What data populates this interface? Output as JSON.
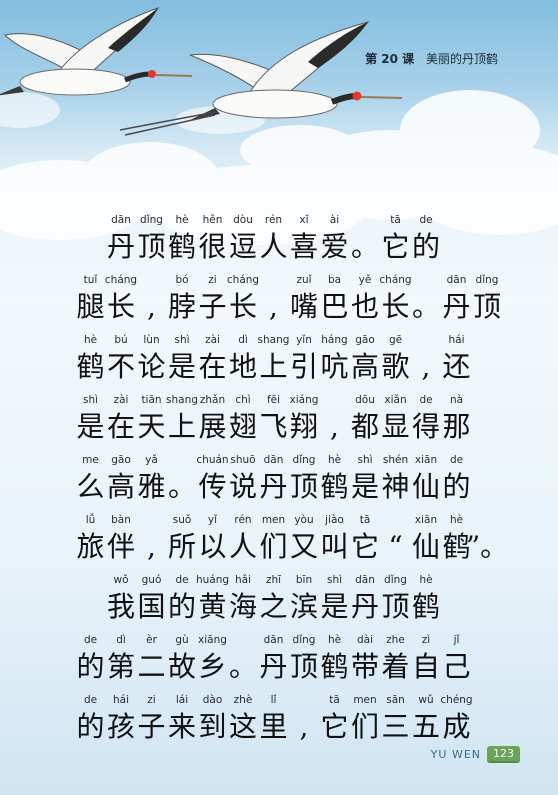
{
  "header": {
    "lesson_number": "第 20 课",
    "lesson_title": "美丽的丹顶鹤"
  },
  "lines": [
    {
      "start": 1,
      "cells": [
        {
          "py": "dān",
          "hz": "丹"
        },
        {
          "py": "dǐng",
          "hz": "顶"
        },
        {
          "py": "hè",
          "hz": "鹤"
        },
        {
          "py": "hěn",
          "hz": "很"
        },
        {
          "py": "dòu",
          "hz": "逗"
        },
        {
          "py": "rén",
          "hz": "人"
        },
        {
          "py": "xǐ",
          "hz": "喜"
        },
        {
          "py": "ài",
          "hz": "爱"
        },
        {
          "py": "",
          "hz": "。"
        },
        {
          "py": "tā",
          "hz": "它"
        },
        {
          "py": "de",
          "hz": "的"
        }
      ]
    },
    {
      "start": 0,
      "cells": [
        {
          "py": "tuǐ",
          "hz": "腿"
        },
        {
          "py": "cháng",
          "hz": "长"
        },
        {
          "py": "",
          "hz": ","
        },
        {
          "py": "bó",
          "hz": "脖"
        },
        {
          "py": "zi",
          "hz": "子"
        },
        {
          "py": "cháng",
          "hz": "长"
        },
        {
          "py": "",
          "hz": ","
        },
        {
          "py": "zuǐ",
          "hz": "嘴"
        },
        {
          "py": "ba",
          "hz": "巴"
        },
        {
          "py": "yě",
          "hz": "也"
        },
        {
          "py": "cháng",
          "hz": "长"
        },
        {
          "py": "",
          "hz": "。"
        },
        {
          "py": "dān",
          "hz": "丹"
        },
        {
          "py": "dǐng",
          "hz": "顶"
        }
      ]
    },
    {
      "start": 0,
      "cells": [
        {
          "py": "hè",
          "hz": "鹤"
        },
        {
          "py": "bú",
          "hz": "不"
        },
        {
          "py": "lùn",
          "hz": "论"
        },
        {
          "py": "shì",
          "hz": "是"
        },
        {
          "py": "zài",
          "hz": "在"
        },
        {
          "py": "dì",
          "hz": "地"
        },
        {
          "py": "shang",
          "hz": "上"
        },
        {
          "py": "yǐn",
          "hz": "引"
        },
        {
          "py": "háng",
          "hz": "吭"
        },
        {
          "py": "gāo",
          "hz": "高"
        },
        {
          "py": "gē",
          "hz": "歌"
        },
        {
          "py": "",
          "hz": ","
        },
        {
          "py": "hái",
          "hz": "还"
        }
      ]
    },
    {
      "start": 0,
      "cells": [
        {
          "py": "shì",
          "hz": "是"
        },
        {
          "py": "zài",
          "hz": "在"
        },
        {
          "py": "tiān",
          "hz": "天"
        },
        {
          "py": "shang",
          "hz": "上"
        },
        {
          "py": "zhǎn",
          "hz": "展"
        },
        {
          "py": "chì",
          "hz": "翅"
        },
        {
          "py": "fēi",
          "hz": "飞"
        },
        {
          "py": "xiáng",
          "hz": "翔"
        },
        {
          "py": "",
          "hz": ","
        },
        {
          "py": "dōu",
          "hz": "都"
        },
        {
          "py": "xiǎn",
          "hz": "显"
        },
        {
          "py": "de",
          "hz": "得"
        },
        {
          "py": "nà",
          "hz": "那"
        }
      ]
    },
    {
      "start": 0,
      "cells": [
        {
          "py": "me",
          "hz": "么"
        },
        {
          "py": "gāo",
          "hz": "高"
        },
        {
          "py": "yǎ",
          "hz": "雅"
        },
        {
          "py": "",
          "hz": "。"
        },
        {
          "py": "chuán",
          "hz": "传"
        },
        {
          "py": "shuō",
          "hz": "说"
        },
        {
          "py": "dān",
          "hz": "丹"
        },
        {
          "py": "dǐng",
          "hz": "顶"
        },
        {
          "py": "hè",
          "hz": "鹤"
        },
        {
          "py": "shì",
          "hz": "是"
        },
        {
          "py": "shén",
          "hz": "神"
        },
        {
          "py": "xiān",
          "hz": "仙"
        },
        {
          "py": "de",
          "hz": "的"
        }
      ]
    },
    {
      "start": 0,
      "cells": [
        {
          "py": "lǚ",
          "hz": "旅"
        },
        {
          "py": "bàn",
          "hz": "伴"
        },
        {
          "py": "",
          "hz": ","
        },
        {
          "py": "suǒ",
          "hz": "所"
        },
        {
          "py": "yǐ",
          "hz": "以"
        },
        {
          "py": "rén",
          "hz": "人"
        },
        {
          "py": "men",
          "hz": "们"
        },
        {
          "py": "yòu",
          "hz": "又"
        },
        {
          "py": "jiào",
          "hz": "叫"
        },
        {
          "py": "tā",
          "hz": "它"
        },
        {
          "py": "",
          "hz": "“"
        },
        {
          "py": "xiān",
          "hz": "仙"
        },
        {
          "py": "hè",
          "hz": "鹤"
        },
        {
          "py": "",
          "hz": "”。"
        }
      ]
    },
    {
      "start": 1,
      "cells": [
        {
          "py": "wǒ",
          "hz": "我"
        },
        {
          "py": "guó",
          "hz": "国"
        },
        {
          "py": "de",
          "hz": "的"
        },
        {
          "py": "huáng",
          "hz": "黄"
        },
        {
          "py": "hǎi",
          "hz": "海"
        },
        {
          "py": "zhī",
          "hz": "之"
        },
        {
          "py": "bīn",
          "hz": "滨"
        },
        {
          "py": "shì",
          "hz": "是"
        },
        {
          "py": "dān",
          "hz": "丹"
        },
        {
          "py": "dǐng",
          "hz": "顶"
        },
        {
          "py": "hè",
          "hz": "鹤"
        }
      ]
    },
    {
      "start": 0,
      "cells": [
        {
          "py": "de",
          "hz": "的"
        },
        {
          "py": "dì",
          "hz": "第"
        },
        {
          "py": "èr",
          "hz": "二"
        },
        {
          "py": "gù",
          "hz": "故"
        },
        {
          "py": "xiāng",
          "hz": "乡"
        },
        {
          "py": "",
          "hz": "。"
        },
        {
          "py": "dān",
          "hz": "丹"
        },
        {
          "py": "dǐng",
          "hz": "顶"
        },
        {
          "py": "hè",
          "hz": "鹤"
        },
        {
          "py": "dài",
          "hz": "带"
        },
        {
          "py": "zhe",
          "hz": "着"
        },
        {
          "py": "zì",
          "hz": "自"
        },
        {
          "py": "jǐ",
          "hz": "己"
        }
      ]
    },
    {
      "start": 0,
      "cells": [
        {
          "py": "de",
          "hz": "的"
        },
        {
          "py": "hái",
          "hz": "孩"
        },
        {
          "py": "zi",
          "hz": "子"
        },
        {
          "py": "lái",
          "hz": "来"
        },
        {
          "py": "dào",
          "hz": "到"
        },
        {
          "py": "zhè",
          "hz": "这"
        },
        {
          "py": "lǐ",
          "hz": "里"
        },
        {
          "py": "",
          "hz": ","
        },
        {
          "py": "tā",
          "hz": "它"
        },
        {
          "py": "men",
          "hz": "们"
        },
        {
          "py": "sān",
          "hz": "三"
        },
        {
          "py": "wǔ",
          "hz": "五"
        },
        {
          "py": "chéng",
          "hz": "成"
        }
      ]
    }
  ],
  "footer": {
    "label": "YU WEN",
    "page_number": "123"
  }
}
